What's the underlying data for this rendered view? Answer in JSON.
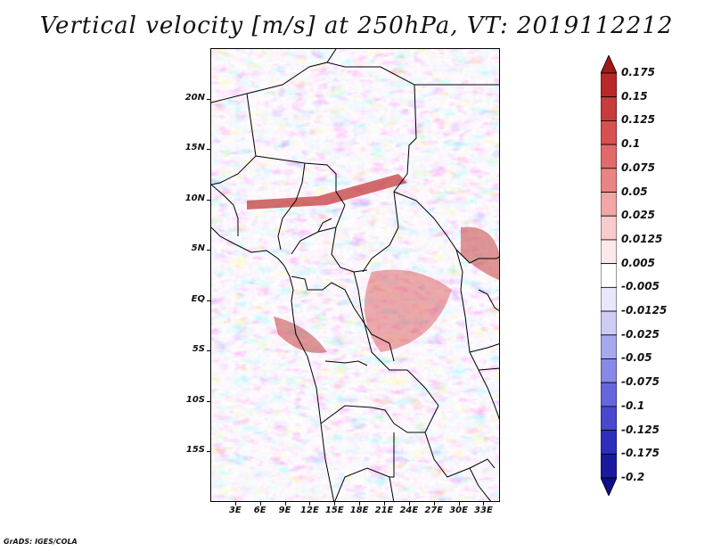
{
  "title": "Vertical velocity [m/s] at 250hPa, VT: 2019112212",
  "footer": "GrADS: IGES/COLA",
  "map": {
    "lon_range": [
      0,
      35
    ],
    "lat_range": [
      -20,
      25
    ],
    "lat_labels": [
      "20N",
      "15N",
      "10N",
      "5N",
      "EQ",
      "5S",
      "10S",
      "15S"
    ],
    "lat_values": [
      20,
      15,
      10,
      5,
      0,
      -5,
      -10,
      -15
    ],
    "lon_labels": [
      "3E",
      "6E",
      "9E",
      "12E",
      "15E",
      "18E",
      "21E",
      "24E",
      "27E",
      "30E",
      "33E"
    ],
    "lon_values": [
      3,
      6,
      9,
      12,
      15,
      18,
      21,
      24,
      27,
      30,
      33
    ]
  },
  "colorbar": {
    "labels": [
      "0.175",
      "0.15",
      "0.125",
      "0.1",
      "0.075",
      "0.05",
      "0.025",
      "0.0125",
      "0.005",
      "-0.005",
      "-0.0125",
      "-0.025",
      "-0.05",
      "-0.075",
      "-0.1",
      "-0.125",
      "-0.175",
      "-0.2"
    ],
    "colors": [
      "#a01818",
      "#b82828",
      "#c83c3c",
      "#d85050",
      "#e26a6a",
      "#ea8484",
      "#f2a6a6",
      "#f8cccc",
      "#fce8e8",
      "#ffffff",
      "#e8e8fa",
      "#ccccf4",
      "#a8a8ee",
      "#8888e6",
      "#6666dc",
      "#4848d0",
      "#2e2ebc",
      "#1a1aa0",
      "#0e0e88"
    ]
  }
}
